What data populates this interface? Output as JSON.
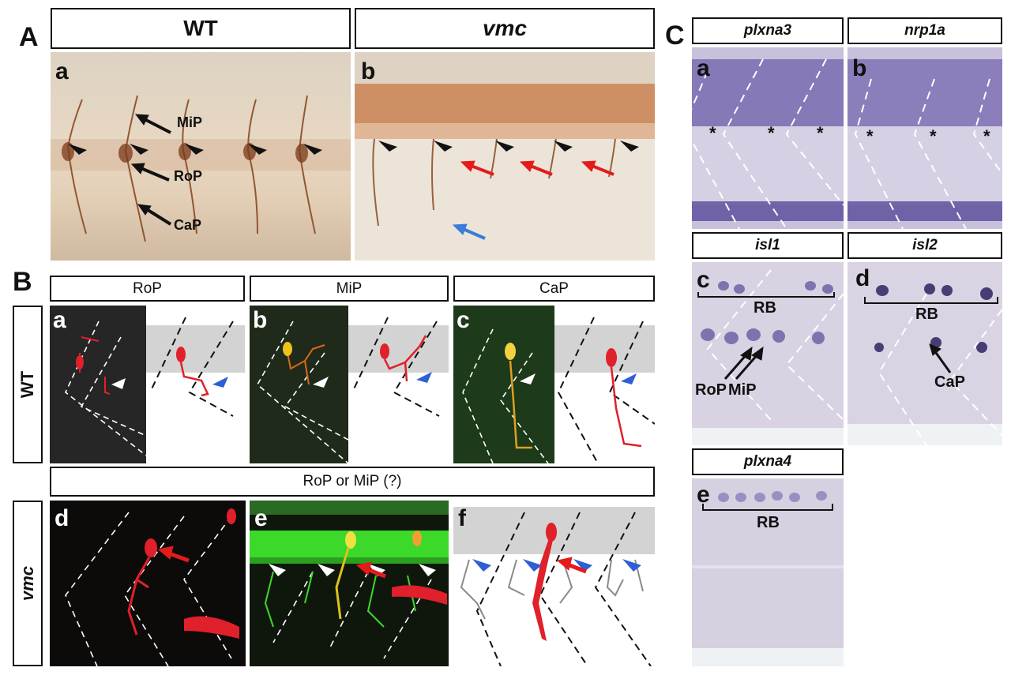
{
  "section_A": {
    "letter": "A",
    "headers": {
      "wt": "WT",
      "vmc": "vmc"
    },
    "panel_a": {
      "label": "a",
      "annotations": [
        "MiP",
        "RoP",
        "CaP"
      ]
    },
    "panel_b": {
      "label": "b"
    }
  },
  "section_B": {
    "letter": "B",
    "headers": {
      "rop": "RoP",
      "mip": "MiP",
      "cap": "CaP",
      "rop_or_mip": "RoP or MiP (?)"
    },
    "row_labels": {
      "wt": "WT",
      "vmc": "vmc"
    },
    "panels": {
      "a": "a",
      "b": "b",
      "c": "c",
      "d": "d",
      "e": "e",
      "f": "f"
    }
  },
  "section_C": {
    "letter": "C",
    "headers": {
      "plxna3": "plxna3",
      "nrp1a": "nrp1a",
      "isl1": "isl1",
      "isl2": "isl2",
      "plxna4": "plxna4"
    },
    "panels": {
      "a": "a",
      "b": "b",
      "c": "c",
      "d": "d",
      "e": "e"
    },
    "annotations": {
      "asterisk": "*",
      "rb": "RB",
      "rop": "RoP",
      "mip": "MiP",
      "cap": "CaP"
    }
  },
  "colors": {
    "dic_background": "#e6d6c2",
    "stain_brown": "#8a4a22",
    "fluor_red": "#e0202a",
    "fluor_green": "#2ecc30",
    "insitu_purple": "#5a4a9a",
    "arrow_red": "#e41b1b",
    "arrow_blue": "#3a7bdc",
    "arrowhead_black": "#111111",
    "arrowhead_white": "#ffffff",
    "arrowhead_blue": "#2f5fd6"
  }
}
